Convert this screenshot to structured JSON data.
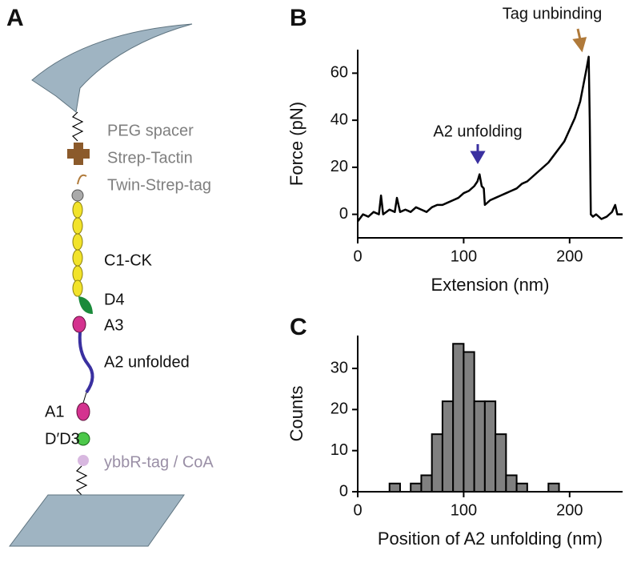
{
  "panel_labels": [
    "A",
    "B",
    "C"
  ],
  "diagram": {
    "labels": [
      "PEG spacer",
      "Strep-Tactin",
      "Twin-Strep-tag",
      "C1-CK",
      "D4",
      "A3",
      "A2 unfolded",
      "A1",
      "D′D3",
      "ybbR-tag / CoA"
    ]
  },
  "chart_data": [
    {
      "type": "line",
      "xlabel": "Extension (nm)",
      "ylabel": "Force (pN)",
      "annotations": [
        "A2 unfolding",
        "Tag unbinding"
      ],
      "color": "#000000",
      "x": [
        0,
        5,
        10,
        15,
        20,
        22,
        24,
        30,
        35,
        37,
        40,
        45,
        50,
        55,
        60,
        65,
        70,
        75,
        80,
        85,
        90,
        95,
        100,
        105,
        110,
        113,
        115,
        117,
        119,
        120,
        125,
        130,
        135,
        140,
        145,
        150,
        155,
        160,
        165,
        170,
        175,
        180,
        185,
        190,
        195,
        200,
        205,
        210,
        213,
        216,
        218,
        219,
        220,
        222,
        225,
        230,
        235,
        240,
        243,
        245,
        250
      ],
      "y": [
        -3,
        0,
        -1,
        1,
        0,
        8,
        0,
        2,
        1,
        7,
        1,
        2,
        1,
        3,
        2,
        1,
        3,
        4,
        4,
        5,
        6,
        7,
        9,
        10,
        12,
        14,
        17,
        12,
        11,
        4,
        6,
        7,
        8,
        9,
        10,
        11,
        13,
        14,
        16,
        18,
        20,
        22,
        25,
        28,
        31,
        36,
        41,
        48,
        55,
        62,
        67,
        40,
        0,
        -1,
        0,
        -2,
        -1,
        1,
        4,
        0,
        0
      ],
      "xlim": [
        0,
        250
      ],
      "ylim": [
        -10,
        70
      ],
      "xticks": [
        0,
        100,
        200
      ],
      "yticks": [
        0,
        20,
        40,
        60
      ]
    },
    {
      "type": "histogram",
      "xlabel": "Position of A2 unfolding (nm)",
      "ylabel": "Counts",
      "color": "#808080",
      "bins": [
        30,
        40,
        50,
        60,
        70,
        80,
        90,
        100,
        110,
        120,
        130,
        140,
        150,
        160,
        170,
        180,
        190
      ],
      "values": [
        2,
        0,
        2,
        4,
        14,
        22,
        36,
        34,
        22,
        22,
        14,
        4,
        2,
        0,
        0,
        2
      ],
      "xlim": [
        0,
        250
      ],
      "ylim": [
        0,
        38
      ],
      "xticks": [
        0,
        100,
        200
      ],
      "yticks": [
        0,
        10,
        20,
        30
      ]
    }
  ]
}
